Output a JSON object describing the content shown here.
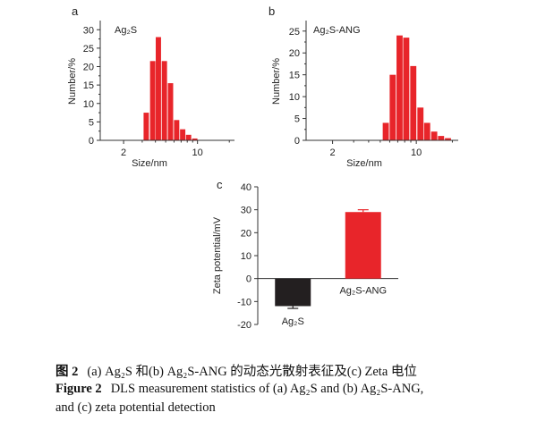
{
  "chart_data": [
    {
      "id": "a",
      "type": "bar",
      "panel_label": "a",
      "title": "Ag₂S",
      "xlabel": "Size/nm",
      "ylabel": "Number/%",
      "x_scale": "log",
      "x_ticks": [
        2,
        10
      ],
      "y_ticks": [
        0,
        5,
        10,
        15,
        20,
        25,
        30
      ],
      "ylim": [
        0,
        32
      ],
      "color": "#e8252a",
      "bins": [
        {
          "x": 3.3,
          "value": 7.5
        },
        {
          "x": 3.8,
          "value": 21.5
        },
        {
          "x": 4.3,
          "value": 28
        },
        {
          "x": 4.9,
          "value": 21.5
        },
        {
          "x": 5.6,
          "value": 15.5
        },
        {
          "x": 6.4,
          "value": 5.5
        },
        {
          "x": 7.3,
          "value": 3
        },
        {
          "x": 8.3,
          "value": 1.5
        },
        {
          "x": 9.5,
          "value": 0.5
        }
      ]
    },
    {
      "id": "b",
      "type": "bar",
      "panel_label": "b",
      "title": "Ag₂S-ANG",
      "xlabel": "Size/nm",
      "ylabel": "Number/%",
      "x_scale": "log",
      "x_ticks": [
        2,
        10
      ],
      "y_ticks": [
        0,
        5,
        10,
        15,
        20,
        25
      ],
      "ylim": [
        0,
        27
      ],
      "color": "#e8252a",
      "bins": [
        {
          "x": 5.6,
          "value": 4
        },
        {
          "x": 6.4,
          "value": 15
        },
        {
          "x": 7.3,
          "value": 24
        },
        {
          "x": 8.3,
          "value": 23.5
        },
        {
          "x": 9.5,
          "value": 17
        },
        {
          "x": 10.9,
          "value": 7.5
        },
        {
          "x": 12.4,
          "value": 4
        },
        {
          "x": 14.2,
          "value": 2
        },
        {
          "x": 16.2,
          "value": 1
        },
        {
          "x": 18.5,
          "value": 0.5
        }
      ]
    },
    {
      "id": "c",
      "type": "bar",
      "panel_label": "c",
      "xlabel": "",
      "ylabel": "Zeta potential/mV",
      "y_ticks": [
        -20,
        -10,
        0,
        10,
        20,
        30,
        40
      ],
      "ylim": [
        -20,
        40
      ],
      "categories": [
        "Ag₂S",
        "Ag₂S-ANG"
      ],
      "values": [
        -12,
        29
      ],
      "errors": [
        1.0,
        1.0
      ],
      "colors": [
        "#231f20",
        "#e8252a"
      ]
    }
  ],
  "caption": {
    "cn_label": "图 2",
    "cn_text": "(a) Ag₂S 和(b) Ag₂S-ANG 的动态光散射表征及(c) Zeta 电位",
    "en_label": "Figure 2",
    "en_text": "DLS measurement statistics of (a) Ag₂S and (b) Ag₂S-ANG,",
    "en_text2": "and (c) zeta potential detection"
  }
}
